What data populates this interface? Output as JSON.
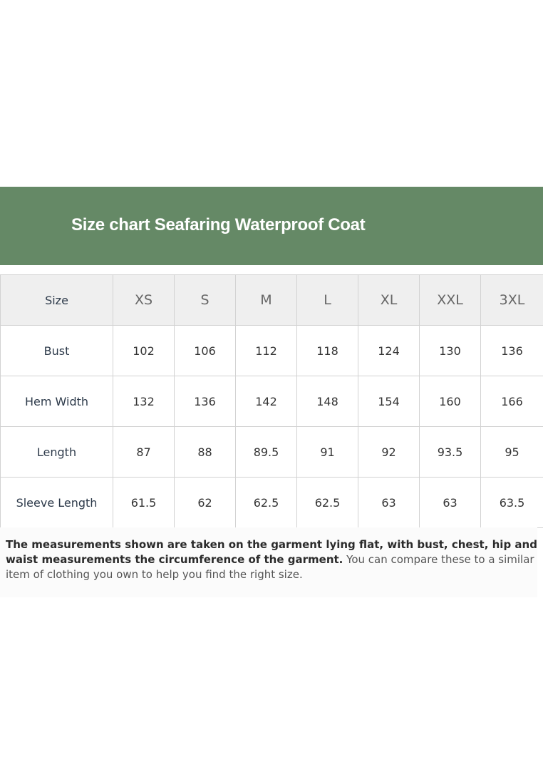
{
  "header": {
    "title": "Size chart Seafaring Waterproof Coat"
  },
  "table": {
    "columns": [
      "Size",
      "XS",
      "S",
      "M",
      "L",
      "XL",
      "XXL",
      "3XL"
    ],
    "rows": [
      [
        "Bust",
        "102",
        "106",
        "112",
        "118",
        "124",
        "130",
        "136"
      ],
      [
        "Hem Width",
        "132",
        "136",
        "142",
        "148",
        "154",
        "160",
        "166"
      ],
      [
        "Length",
        "87",
        "88",
        "89.5",
        "91",
        "92",
        "93.5",
        "95"
      ],
      [
        "Sleeve Length",
        "61.5",
        "62",
        "62.5",
        "62.5",
        "63",
        "63",
        "63.5"
      ]
    ]
  },
  "note": {
    "bold": "The measurements shown are taken on the garment lying flat, with bust, chest, hip and waist measurements the circumference of the garment.",
    "regular": "You can compare these to a similar item of clothing you own to help you find the right size."
  }
}
